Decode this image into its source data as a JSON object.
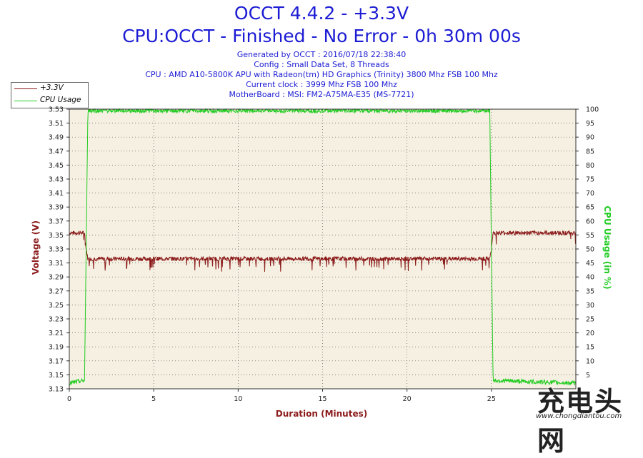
{
  "header": {
    "title": "OCCT 4.4.2 - +3.3V",
    "subtitle": "CPU:OCCT - Finished - No Error - 0h 30m 00s",
    "info_lines": [
      "Generated by OCCT : 2016/07/18 22:38:40",
      "Config : Small Data Set, 8 Threads",
      "CPU : AMD A10-5800K APU with Radeon(tm) HD Graphics (Trinity) 3800 Mhz FSB 100 Mhz",
      "Current clock : 3999 Mhz FSB 100 Mhz",
      "MotherBoard : MSI: FM2-A75MA-E35 (MS-7721)"
    ]
  },
  "legend": [
    {
      "label": "+3.3V",
      "color": "#8b1a1a"
    },
    {
      "label": "CPU Usage",
      "color": "#22cc22"
    }
  ],
  "watermark": {
    "main": "充电头网",
    "url": "www.chongdiantou.com"
  },
  "chart_data": {
    "type": "line",
    "xlabel": "Duration (Minutes)",
    "ylabel_left": "Voltage (V)",
    "ylabel_right": "CPU Usage (in %)",
    "xlim": [
      0,
      30
    ],
    "x_ticks": [
      0,
      5,
      10,
      15,
      20,
      25
    ],
    "ylim_left": [
      3.13,
      3.53
    ],
    "y_ticks_left": [
      "3.13",
      "3.15",
      "3.17",
      "3.19",
      "3.21",
      "3.23",
      "3.25",
      "3.27",
      "3.29",
      "3.31",
      "3.33",
      "3.35",
      "3.37",
      "3.39",
      "3.41",
      "3.43",
      "3.45",
      "3.47",
      "3.49",
      "3.51",
      "3.53"
    ],
    "ylim_right": [
      0,
      100
    ],
    "y_ticks_right": [
      "5",
      "10",
      "15",
      "20",
      "25",
      "30",
      "35",
      "40",
      "45",
      "50",
      "55",
      "60",
      "65",
      "70",
      "75",
      "80",
      "85",
      "90",
      "95",
      "100"
    ],
    "grid": true,
    "background": "#f5f0e1",
    "series": [
      {
        "name": "+3.3V",
        "axis": "left",
        "color": "#8b1a1a",
        "x": [
          0,
          0.9,
          1.0,
          1.1,
          1.2,
          5,
          10,
          15,
          20,
          24.9,
          25.0,
          25.1,
          30
        ],
        "values": [
          3.353,
          3.353,
          3.33,
          3.316,
          3.316,
          3.316,
          3.316,
          3.316,
          3.316,
          3.316,
          3.33,
          3.353,
          3.353
        ]
      },
      {
        "name": "CPU Usage",
        "axis": "right",
        "color": "#22cc22",
        "x": [
          0,
          0.9,
          1.0,
          1.1,
          5,
          10,
          15,
          20,
          24.9,
          25.0,
          25.1,
          30
        ],
        "values": [
          2,
          3,
          50,
          99.5,
          99.5,
          99.5,
          99.5,
          99.5,
          99.5,
          50,
          3,
          2
        ]
      }
    ]
  }
}
